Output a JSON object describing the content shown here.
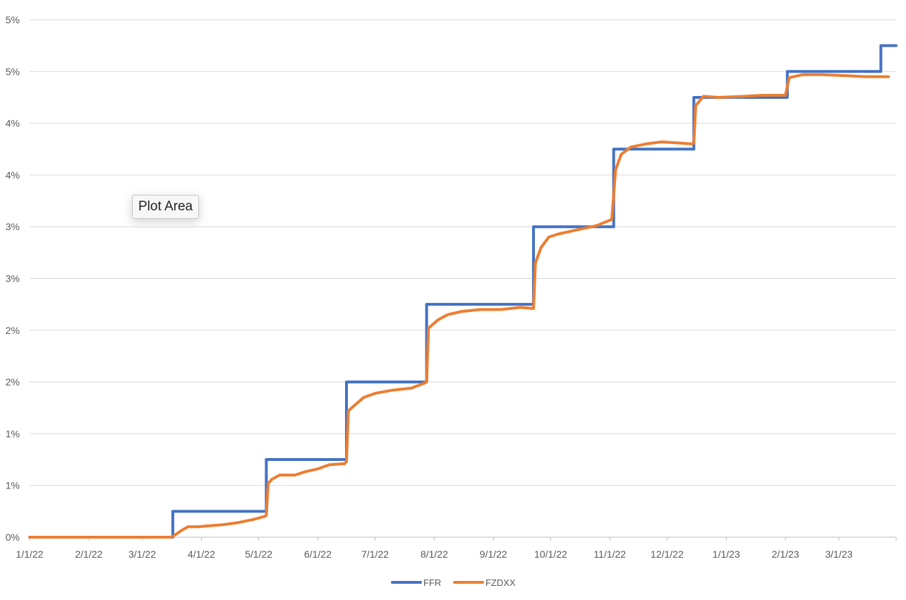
{
  "tooltip": "Plot Area",
  "chart_data": {
    "type": "line",
    "xlabel": "",
    "ylabel": "",
    "yaxis_ticks": [
      "0%",
      "1%",
      "1%",
      "2%",
      "2%",
      "3%",
      "3%",
      "4%",
      "4%",
      "5%",
      "5%"
    ],
    "ylim": [
      0,
      5
    ],
    "x_ticks": [
      "1/1/22",
      "2/1/22",
      "3/1/22",
      "4/1/22",
      "5/1/22",
      "6/1/22",
      "7/1/22",
      "8/1/22",
      "9/1/22",
      "10/1/22",
      "11/1/22",
      "12/1/22",
      "1/1/23",
      "2/1/23",
      "3/1/23"
    ],
    "xlim": [
      "2022-01-01",
      "2023-03-31"
    ],
    "grid": true,
    "legend": "bottom",
    "series": [
      {
        "name": "FFR",
        "color": "#4472C4",
        "step": true,
        "points": [
          [
            "2022-01-01",
            0.0
          ],
          [
            "2022-03-17",
            0.0
          ],
          [
            "2022-03-17",
            0.25
          ],
          [
            "2022-05-05",
            0.25
          ],
          [
            "2022-05-05",
            0.75
          ],
          [
            "2022-06-16",
            0.75
          ],
          [
            "2022-06-16",
            1.5
          ],
          [
            "2022-07-28",
            1.5
          ],
          [
            "2022-07-28",
            2.25
          ],
          [
            "2022-09-22",
            2.25
          ],
          [
            "2022-09-22",
            3.0
          ],
          [
            "2022-11-03",
            3.0
          ],
          [
            "2022-11-03",
            3.75
          ],
          [
            "2022-12-15",
            3.75
          ],
          [
            "2022-12-15",
            4.25
          ],
          [
            "2023-02-02",
            4.25
          ],
          [
            "2023-02-02",
            4.5
          ],
          [
            "2023-03-23",
            4.5
          ],
          [
            "2023-03-23",
            4.75
          ],
          [
            "2023-03-31",
            4.75
          ]
        ]
      },
      {
        "name": "FZDXX",
        "color": "#ED7D31",
        "step": false,
        "points": [
          [
            "2022-01-01",
            0.0
          ],
          [
            "2022-03-16",
            0.0
          ],
          [
            "2022-03-18",
            0.02
          ],
          [
            "2022-03-22",
            0.07
          ],
          [
            "2022-03-25",
            0.1
          ],
          [
            "2022-03-30",
            0.1
          ],
          [
            "2022-04-05",
            0.11
          ],
          [
            "2022-04-12",
            0.12
          ],
          [
            "2022-04-20",
            0.14
          ],
          [
            "2022-04-28",
            0.17
          ],
          [
            "2022-05-04",
            0.2
          ],
          [
            "2022-05-05",
            0.21
          ],
          [
            "2022-05-06",
            0.52
          ],
          [
            "2022-05-08",
            0.56
          ],
          [
            "2022-05-12",
            0.6
          ],
          [
            "2022-05-20",
            0.6
          ],
          [
            "2022-05-25",
            0.63
          ],
          [
            "2022-06-01",
            0.66
          ],
          [
            "2022-06-07",
            0.7
          ],
          [
            "2022-06-15",
            0.71
          ],
          [
            "2022-06-16",
            0.73
          ],
          [
            "2022-06-17",
            1.22
          ],
          [
            "2022-06-20",
            1.27
          ],
          [
            "2022-06-25",
            1.35
          ],
          [
            "2022-07-01",
            1.39
          ],
          [
            "2022-07-10",
            1.42
          ],
          [
            "2022-07-20",
            1.44
          ],
          [
            "2022-07-27",
            1.49
          ],
          [
            "2022-07-28",
            1.5
          ],
          [
            "2022-07-29",
            2.02
          ],
          [
            "2022-08-03",
            2.1
          ],
          [
            "2022-08-08",
            2.15
          ],
          [
            "2022-08-15",
            2.18
          ],
          [
            "2022-08-25",
            2.2
          ],
          [
            "2022-09-05",
            2.2
          ],
          [
            "2022-09-15",
            2.22
          ],
          [
            "2022-09-22",
            2.21
          ],
          [
            "2022-09-23",
            2.65
          ],
          [
            "2022-09-26",
            2.8
          ],
          [
            "2022-09-30",
            2.9
          ],
          [
            "2022-10-05",
            2.93
          ],
          [
            "2022-10-15",
            2.97
          ],
          [
            "2022-10-25",
            3.01
          ],
          [
            "2022-11-02",
            3.07
          ],
          [
            "2022-11-04",
            3.55
          ],
          [
            "2022-11-07",
            3.7
          ],
          [
            "2022-11-12",
            3.77
          ],
          [
            "2022-11-20",
            3.8
          ],
          [
            "2022-11-28",
            3.82
          ],
          [
            "2022-12-07",
            3.81
          ],
          [
            "2022-12-14",
            3.8
          ],
          [
            "2022-12-15",
            3.81
          ],
          [
            "2022-12-16",
            4.17
          ],
          [
            "2022-12-20",
            4.26
          ],
          [
            "2022-12-28",
            4.25
          ],
          [
            "2023-01-10",
            4.26
          ],
          [
            "2023-01-20",
            4.27
          ],
          [
            "2023-02-01",
            4.27
          ],
          [
            "2023-02-03",
            4.44
          ],
          [
            "2023-02-10",
            4.47
          ],
          [
            "2023-02-20",
            4.47
          ],
          [
            "2023-03-05",
            4.46
          ],
          [
            "2023-03-15",
            4.45
          ],
          [
            "2023-03-27",
            4.45
          ]
        ]
      }
    ]
  }
}
